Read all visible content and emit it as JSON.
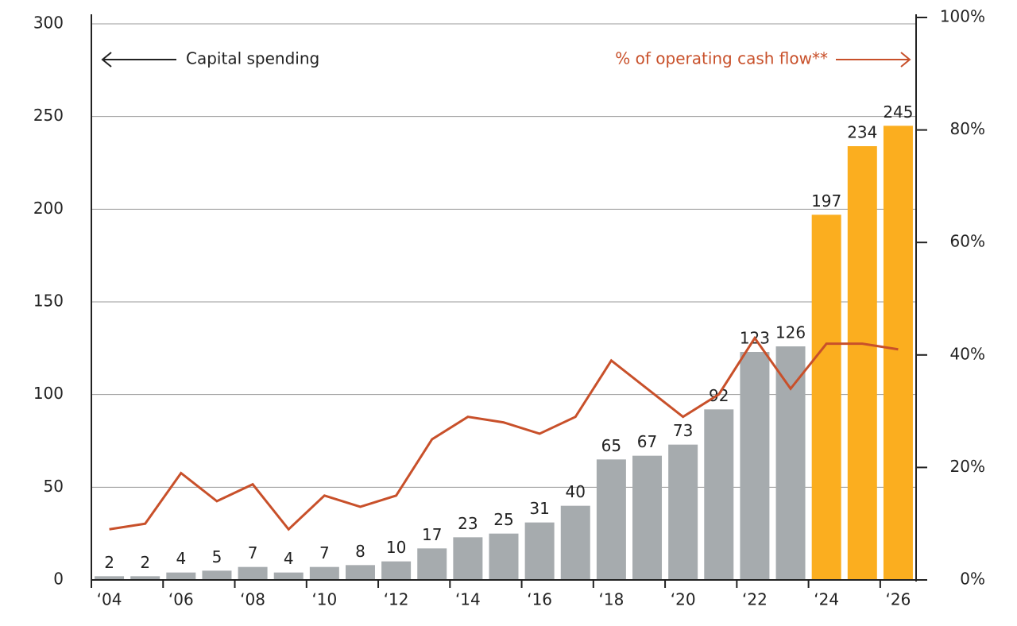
{
  "chart_data": {
    "type": "bar",
    "categories": [
      "‘04",
      null,
      "‘06",
      null,
      "‘08",
      null,
      "‘10",
      null,
      "‘12",
      null,
      "‘14",
      null,
      "‘16",
      null,
      "‘18",
      null,
      "‘20",
      null,
      "‘22",
      null,
      "‘24",
      null,
      "‘26"
    ],
    "series": [
      {
        "name": "Capital spending",
        "type": "bar",
        "values": [
          2,
          2,
          4,
          5,
          7,
          4,
          7,
          8,
          10,
          17,
          23,
          25,
          31,
          40,
          65,
          67,
          73,
          92,
          123,
          126,
          197,
          234,
          245
        ],
        "colors": [
          "#a6abae",
          "#a6abae",
          "#a6abae",
          "#a6abae",
          "#a6abae",
          "#a6abae",
          "#a6abae",
          "#a6abae",
          "#a6abae",
          "#a6abae",
          "#a6abae",
          "#a6abae",
          "#a6abae",
          "#a6abae",
          "#a6abae",
          "#a6abae",
          "#a6abae",
          "#a6abae",
          "#a6abae",
          "#a6abae",
          "#fbae1f",
          "#fbae1f",
          "#fbae1f"
        ]
      },
      {
        "name": "% of operating cash flow**",
        "type": "line",
        "axis": "y2",
        "color": "#c8502a",
        "values": [
          9,
          10,
          19,
          14,
          17,
          9,
          15,
          13,
          15,
          25,
          29,
          28,
          26,
          29,
          39,
          34,
          29,
          33,
          43,
          34,
          42,
          42,
          41
        ]
      }
    ],
    "ylim": [
      0,
      300
    ],
    "yticks": [
      0,
      50,
      100,
      150,
      200,
      250,
      300
    ],
    "y2lim": [
      0,
      100
    ],
    "y2ticks": [
      {
        "value": 0,
        "label": "0%"
      },
      {
        "value": 20,
        "label": "20%"
      },
      {
        "value": 40,
        "label": "40%"
      },
      {
        "value": 60,
        "label": "60%"
      },
      {
        "value": 80,
        "label": "80%"
      },
      {
        "value": 100,
        "label": "100%"
      }
    ],
    "grid": true
  }
}
